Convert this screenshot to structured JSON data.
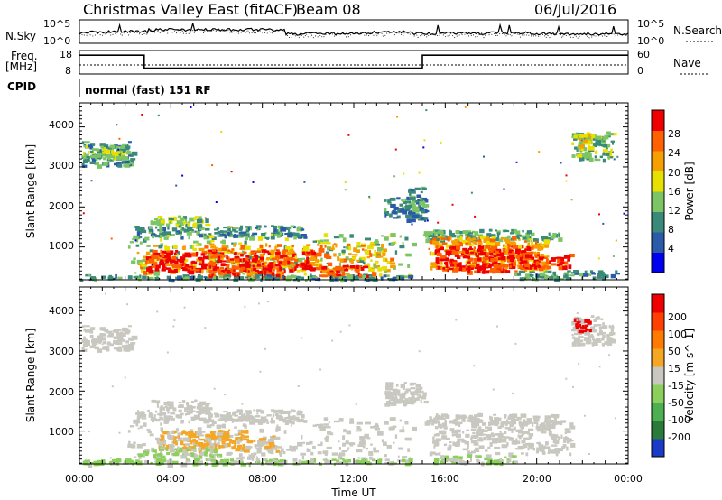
{
  "header": {
    "title": "Christmas Valley East (fitACF)",
    "beam": "Beam 08",
    "date": "06/Jul/2016"
  },
  "noise_panel": {
    "left_label": "N.Sky",
    "right_label": "N.Search",
    "left_ticks": [
      "10^5",
      "10^0"
    ],
    "right_ticks": [
      "10^5",
      "10^0"
    ]
  },
  "freq_panel": {
    "left_label_line1": "Freq.",
    "left_label_line2": "[MHz]",
    "left_ticks": [
      "18",
      "8"
    ],
    "right_ticks": [
      "60",
      "0"
    ],
    "right_label": "Nave",
    "freq_steps": [
      {
        "from": "00:00",
        "to": "02:50",
        "mhz": 16
      },
      {
        "from": "02:50",
        "to": "15:00",
        "mhz": 10.5
      },
      {
        "from": "15:00",
        "to": "24:00",
        "mhz": 16
      }
    ],
    "nave_level": 23
  },
  "cpid": {
    "label": "CPID",
    "program": "normal (fast) 151 RF"
  },
  "x_axis": {
    "label": "Time UT",
    "ticks": [
      "00:00",
      "04:00",
      "08:00",
      "12:00",
      "16:00",
      "20:00",
      "00:00"
    ],
    "range_hours": [
      0,
      24
    ]
  },
  "chart_data": [
    {
      "type": "heatmap",
      "name": "power-panel",
      "ylabel": "Slant Range [km]",
      "yticks": [
        "1000",
        "2000",
        "3000",
        "4000"
      ],
      "ylim": [
        180,
        4600
      ],
      "colorbar": {
        "label": "Power [dB]",
        "ticks": [
          "4",
          "8",
          "12",
          "16",
          "20",
          "24",
          "28"
        ],
        "range": [
          0,
          32
        ],
        "colors": [
          "#0000f0",
          "#2a5aa8",
          "#3a8a7a",
          "#7cc464",
          "#e8e000",
          "#f5a000",
          "#ff6000",
          "#f00000"
        ]
      },
      "regions": [
        {
          "t": [
            0.1,
            2.3
          ],
          "r": [
            3050,
            3650
          ],
          "value": 10
        },
        {
          "t": [
            0.1,
            2.1
          ],
          "r": [
            3250,
            3550
          ],
          "value": 16
        },
        {
          "t": [
            2.3,
            9.8
          ],
          "r": [
            1280,
            1550
          ],
          "value": 10
        },
        {
          "t": [
            3.1,
            5.6
          ],
          "r": [
            1550,
            1800
          ],
          "value": 14
        },
        {
          "t": [
            2.1,
            14.6
          ],
          "r": [
            250,
            1350
          ],
          "value": 14
        },
        {
          "t": [
            2.5,
            13.6
          ],
          "r": [
            400,
            1100
          ],
          "value": 22
        },
        {
          "t": [
            2.8,
            10.2
          ],
          "r": [
            420,
            950
          ],
          "value": 29
        },
        {
          "t": [
            5.5,
            9.0
          ],
          "r": [
            260,
            420
          ],
          "value": 27
        },
        {
          "t": [
            0.0,
            14.5
          ],
          "r": [
            200,
            320
          ],
          "value": 10
        },
        {
          "t": [
            10.5,
            12.8
          ],
          "r": [
            300,
            560
          ],
          "value": 27
        },
        {
          "t": [
            13.3,
            15.1
          ],
          "r": [
            1700,
            2250
          ],
          "value": 9
        },
        {
          "t": [
            14.3,
            15.0
          ],
          "r": [
            1950,
            2550
          ],
          "value": 11
        },
        {
          "t": [
            15.0,
            21.0
          ],
          "r": [
            1200,
            1450
          ],
          "value": 12
        },
        {
          "t": [
            15.3,
            20.4
          ],
          "r": [
            450,
            1300
          ],
          "value": 22
        },
        {
          "t": [
            15.5,
            19.6
          ],
          "r": [
            400,
            1050
          ],
          "value": 29
        },
        {
          "t": [
            19.4,
            21.4
          ],
          "r": [
            500,
            850
          ],
          "value": 28
        },
        {
          "t": [
            19.0,
            23.5
          ],
          "r": [
            220,
            430
          ],
          "value": 11
        },
        {
          "t": [
            21.5,
            23.3
          ],
          "r": [
            3200,
            3900
          ],
          "value": 13
        },
        {
          "t": [
            21.6,
            22.3
          ],
          "r": [
            3500,
            3850
          ],
          "value": 19
        }
      ]
    },
    {
      "type": "heatmap",
      "name": "velocity-panel",
      "ylabel": "Slant Range [km]",
      "yticks": [
        "1000",
        "2000",
        "3000",
        "4000"
      ],
      "ylim": [
        180,
        4600
      ],
      "colorbar": {
        "label": "Velocity [m s^-1]",
        "ticks": [
          "200",
          "100",
          "50",
          "15",
          "-15",
          "-50",
          "-100",
          "-200"
        ],
        "range": [
          -250,
          250
        ],
        "colors": [
          "#1a3ac8",
          "#2a7a3a",
          "#4caf50",
          "#8ad05a",
          "#c8c8c0",
          "#f5a623",
          "#ff7a00",
          "#ff4000",
          "#f00000"
        ]
      },
      "regions": [
        {
          "t": [
            0.1,
            2.3
          ],
          "r": [
            3050,
            3650
          ],
          "value": 0
        },
        {
          "t": [
            2.3,
            9.8
          ],
          "r": [
            1280,
            1550
          ],
          "value": 0
        },
        {
          "t": [
            3.1,
            5.6
          ],
          "r": [
            1550,
            1800
          ],
          "value": 0
        },
        {
          "t": [
            2.1,
            14.6
          ],
          "r": [
            250,
            1350
          ],
          "value": 0
        },
        {
          "t": [
            3.4,
            7.4
          ],
          "r": [
            550,
            1050
          ],
          "value": 35
        },
        {
          "t": [
            7.6,
            8.6
          ],
          "r": [
            500,
            900
          ],
          "value": 25
        },
        {
          "t": [
            2.5,
            6.0
          ],
          "r": [
            380,
            620
          ],
          "value": -30
        },
        {
          "t": [
            0.0,
            14.5
          ],
          "r": [
            200,
            330
          ],
          "value": -35
        },
        {
          "t": [
            13.3,
            15.1
          ],
          "r": [
            1700,
            2250
          ],
          "value": 0
        },
        {
          "t": [
            15.0,
            21.0
          ],
          "r": [
            1200,
            1450
          ],
          "value": 0
        },
        {
          "t": [
            15.3,
            21.5
          ],
          "r": [
            450,
            1300
          ],
          "value": 0
        },
        {
          "t": [
            15.5,
            19.0
          ],
          "r": [
            230,
            420
          ],
          "value": -30
        },
        {
          "t": [
            21.5,
            23.3
          ],
          "r": [
            3200,
            3900
          ],
          "value": 0
        },
        {
          "t": [
            21.6,
            22.3
          ],
          "r": [
            3500,
            3850
          ],
          "value": 210
        }
      ]
    }
  ]
}
